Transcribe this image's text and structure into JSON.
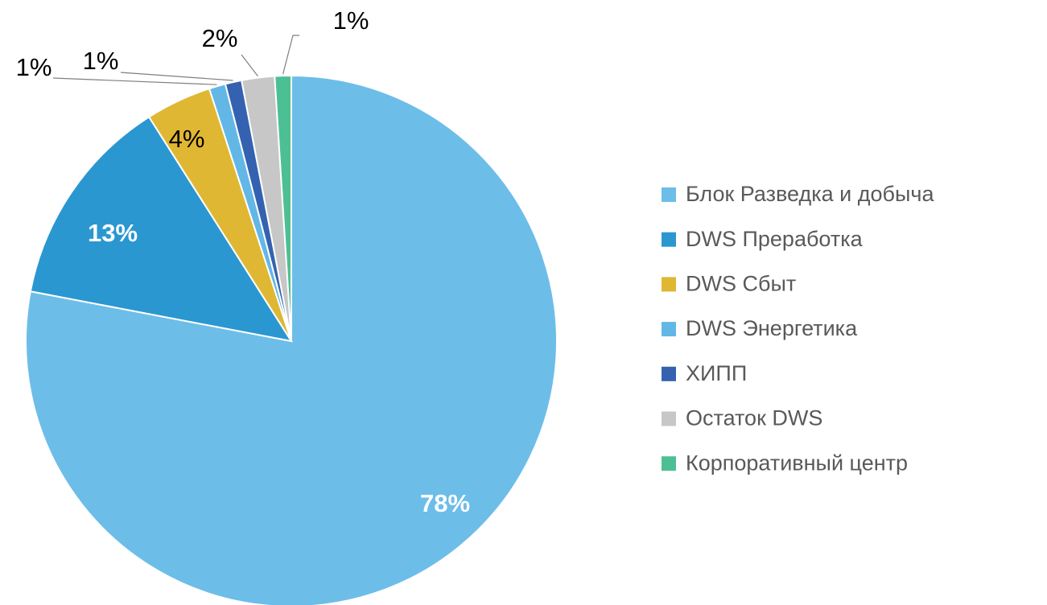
{
  "chart_data": {
    "type": "pie",
    "categories": [
      "Блок Разведка и добыча",
      "DWS Преработка",
      "DWS Сбыт",
      "DWS Энергетика",
      "ХИПП",
      "Остаток DWS",
      "Корпоративный центр"
    ],
    "values": [
      78,
      13,
      4,
      1,
      1,
      2,
      1
    ],
    "value_labels": [
      "78%",
      "13%",
      "4%",
      "1%",
      "1%",
      "2%",
      "1%"
    ],
    "colors": [
      "#6dbde9",
      "#2a97d1",
      "#e0b733",
      "#62b7e6",
      "#3462b0",
      "#c7c7c7",
      "#4dbf95"
    ],
    "legend": "right"
  }
}
